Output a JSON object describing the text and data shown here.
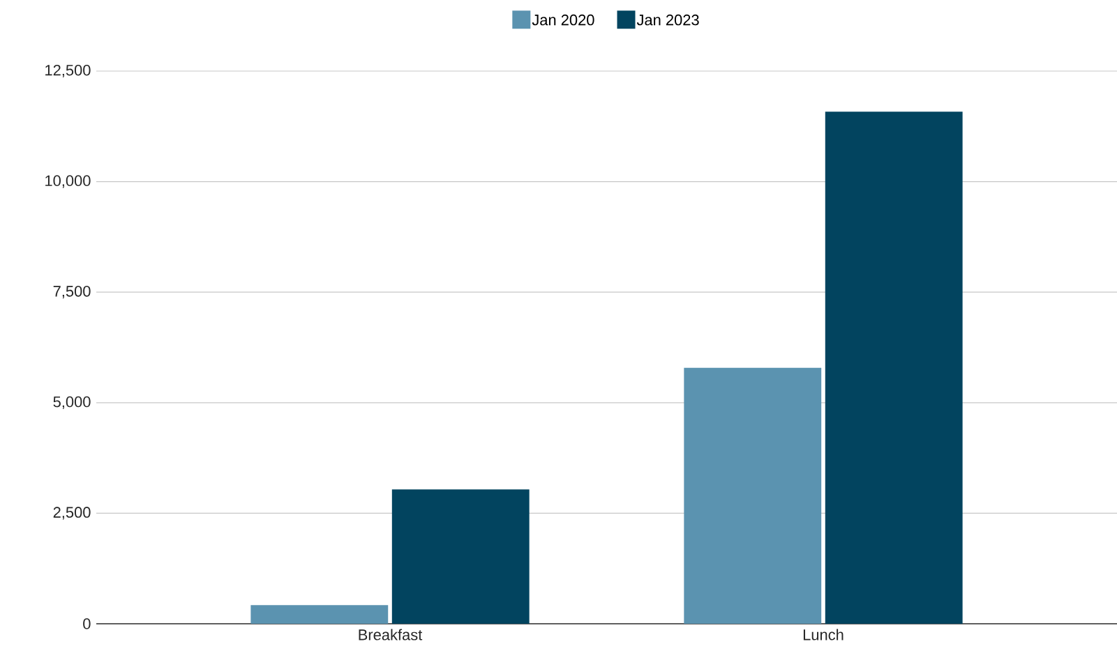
{
  "chart_data": {
    "type": "bar",
    "categories": [
      "Breakfast",
      "Lunch"
    ],
    "series": [
      {
        "name": "Jan 2020",
        "color": "#5b93b0",
        "values": [
          420,
          5790
        ]
      },
      {
        "name": "Jan 2023",
        "color": "#02445f",
        "values": [
          3040,
          11580
        ]
      }
    ],
    "ylim": [
      0,
      12500
    ],
    "yticks": [
      0,
      {
        "value": 2500,
        "label": "2,500"
      },
      {
        "value": 5000,
        "label": "5,000"
      },
      {
        "value": 7500,
        "label": "7,500"
      },
      {
        "value": 10000,
        "label": "10,000"
      },
      {
        "value": 12500,
        "label": "12,500"
      }
    ],
    "grid": "y",
    "legend": "top"
  }
}
